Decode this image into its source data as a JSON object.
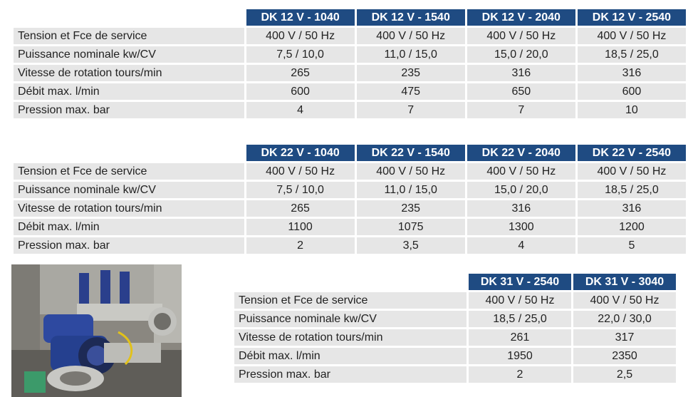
{
  "rows": [
    "Tension et Fce de service",
    "Puissance nominale kw/CV",
    "Vitesse de rotation tours/min",
    "Débit max. l/min",
    "Pression max. bar"
  ],
  "table1": {
    "headers": [
      "DK 12 V - 1040",
      "DK 12 V - 1540",
      "DK 12 V - 2040",
      "DK 12 V - 2540"
    ],
    "data": [
      [
        "400 V / 50 Hz",
        "400 V / 50 Hz",
        "400 V / 50 Hz",
        "400 V / 50 Hz"
      ],
      [
        "7,5  / 10,0",
        "11,0 / 15,0",
        "15,0 / 20,0",
        "18,5 / 25,0"
      ],
      [
        "265",
        "235",
        "316",
        "316"
      ],
      [
        "600",
        "475",
        "650",
        "600"
      ],
      [
        "4",
        "7",
        "7",
        "10"
      ]
    ]
  },
  "table2": {
    "headers": [
      "DK 22 V - 1040",
      "DK 22 V - 1540",
      "DK 22 V - 2040",
      "DK 22 V - 2540"
    ],
    "data": [
      [
        "400 V / 50 Hz",
        "400 V / 50 Hz",
        "400 V / 50 Hz",
        "400 V / 50 Hz"
      ],
      [
        "7,5  / 10,0",
        "11,0 / 15,0",
        "15,0 / 20,0",
        "18,5 / 25,0"
      ],
      [
        "265",
        "235",
        "316",
        "316"
      ],
      [
        "1100",
        "1075",
        "1300",
        "1200"
      ],
      [
        "2",
        "3,5",
        "4",
        "5"
      ]
    ]
  },
  "table3": {
    "headers": [
      "DK 31 V - 2540",
      "DK 31 V - 3040"
    ],
    "data": [
      [
        "400 V / 50 Hz",
        "400 V / 50 Hz"
      ],
      [
        "18,5 / 25,0",
        "22,0 / 30,0"
      ],
      [
        "261",
        "317"
      ],
      [
        "1950",
        "2350"
      ],
      [
        "2",
        "2,5"
      ]
    ]
  }
}
